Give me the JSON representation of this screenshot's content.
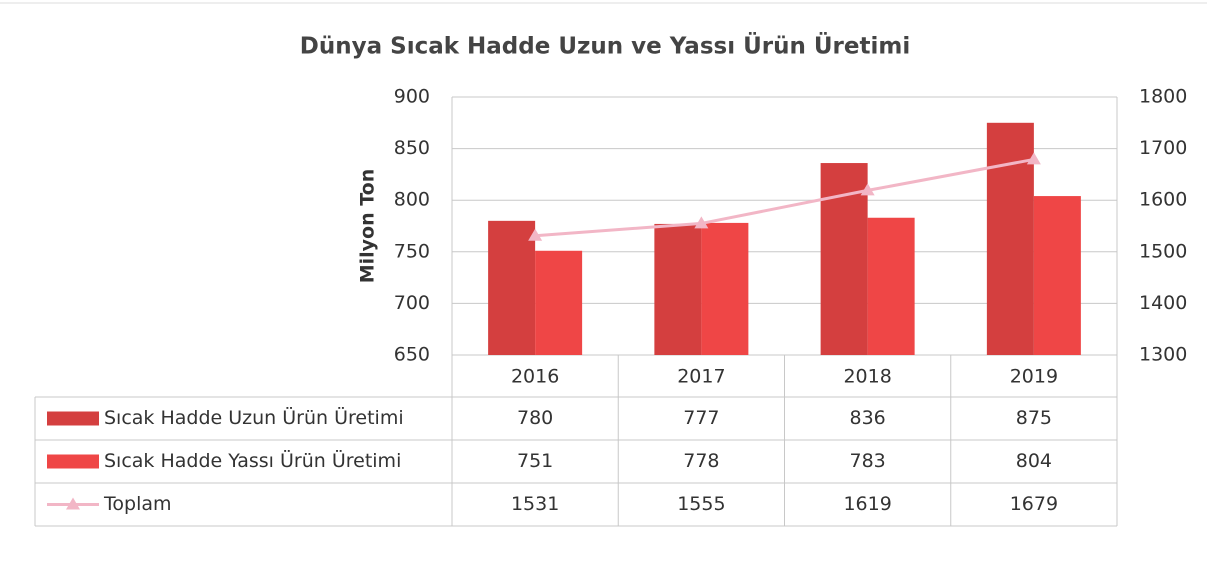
{
  "chart_data": {
    "type": "bar",
    "title": "Dünya Sıcak Hadde Uzun ve Yassı Ürün Üretimi",
    "y_label": "Milyon Ton",
    "categories": [
      "2016",
      "2017",
      "2018",
      "2019"
    ],
    "series": [
      {
        "name": "Sıcak Hadde Uzun Ürün Üretimi",
        "color": "#d43f3f",
        "type": "bar",
        "values": [
          780,
          777,
          836,
          875
        ]
      },
      {
        "name": "Sıcak Hadde Yassı Ürün Üretimi",
        "color": "#ef4646",
        "type": "bar",
        "values": [
          751,
          778,
          783,
          804
        ]
      },
      {
        "name": "Toplam",
        "color": "#f2b6c6",
        "type": "line",
        "axis": "y2",
        "values": [
          1531,
          1555,
          1619,
          1679
        ]
      }
    ],
    "ylim": [
      650,
      900
    ],
    "yticks": [
      650,
      700,
      750,
      800,
      850,
      900
    ],
    "y2lim": [
      1300,
      1800
    ],
    "y2ticks": [
      1300,
      1400,
      1500,
      1600,
      1700,
      1800
    ],
    "grid": true,
    "data_table": true
  }
}
